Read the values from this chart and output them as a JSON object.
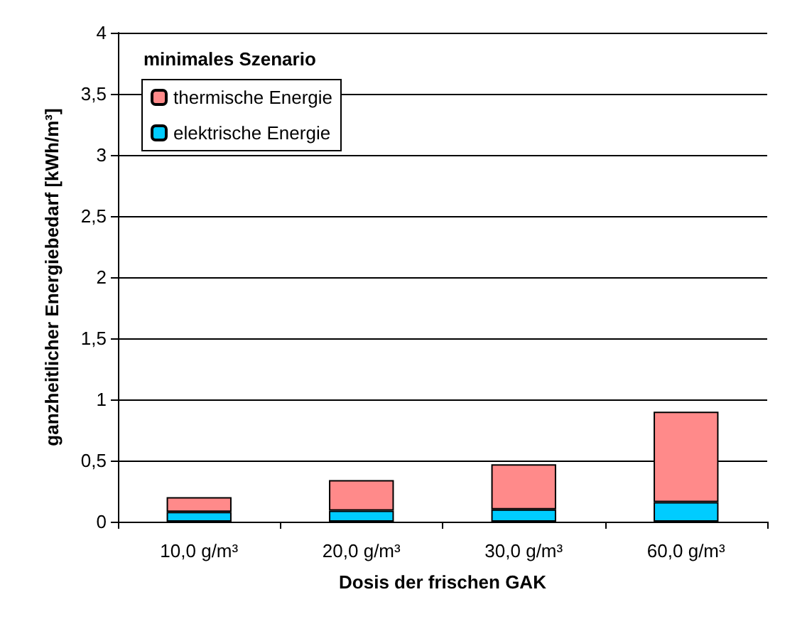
{
  "chart_data": {
    "type": "bar",
    "title": "minimales Szenario",
    "xlabel": "Dosis der frischen GAK",
    "ylabel": "ganzheitlicher Energiebedarf [kWh/m³]",
    "categories": [
      "10,0 g/m³",
      "20,0 g/m³",
      "30,0 g/m³",
      "60,0 g/m³"
    ],
    "stacked": true,
    "series": [
      {
        "name": "elektrische Energie",
        "color": "#00ccff",
        "values": [
          0.08,
          0.09,
          0.1,
          0.16
        ]
      },
      {
        "name": "thermische Energie",
        "color": "#ff8a8a",
        "values": [
          0.12,
          0.25,
          0.37,
          0.74
        ]
      }
    ],
    "ylim": [
      0,
      4
    ],
    "yticks": [
      0,
      {
        "value": 0.5,
        "label": "0,5"
      },
      1,
      {
        "value": 1.5,
        "label": "1,5"
      },
      2,
      {
        "value": 2.5,
        "label": "2,5"
      },
      3,
      {
        "value": 3.5,
        "label": "3,5"
      },
      4
    ],
    "grid": "y",
    "legend": "top left"
  }
}
